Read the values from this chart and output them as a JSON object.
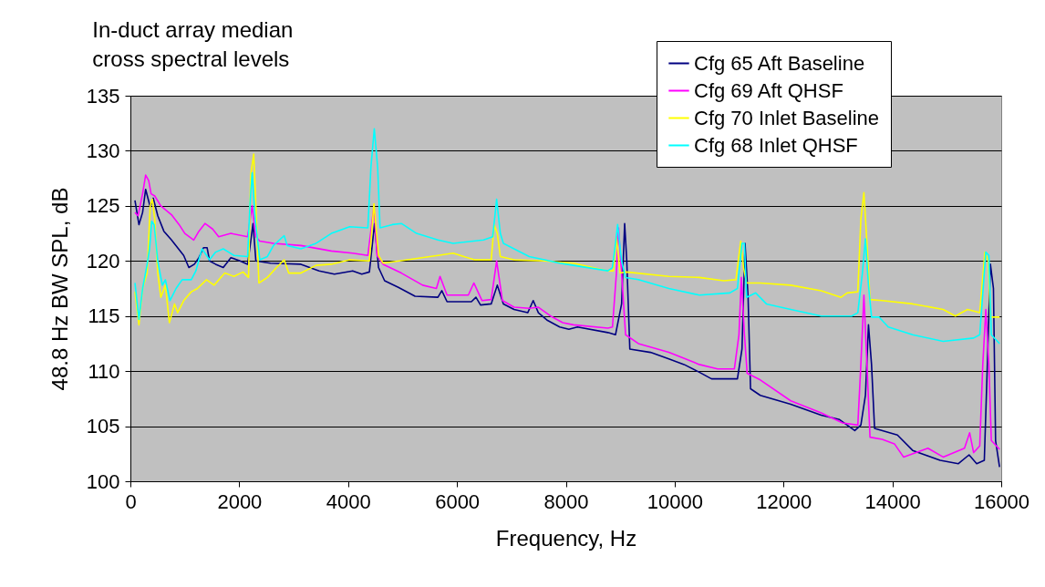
{
  "chart_data": {
    "type": "line",
    "title": "In-duct array median cross spectral levels",
    "xlabel": "Frequency, Hz",
    "ylabel": "48.8 Hz BW SPL, dB",
    "xlim": [
      0,
      16000
    ],
    "xticks": [
      0,
      2000,
      4000,
      6000,
      8000,
      10000,
      12000,
      14000,
      16000
    ],
    "ylim": [
      100,
      135
    ],
    "yticks": [
      100,
      105,
      110,
      115,
      120,
      125,
      130,
      135
    ],
    "grid": "y",
    "legend": "top right",
    "line_style": "solid",
    "marker": "none",
    "series": [
      {
        "name": "Cfg 65 Aft Baseline",
        "color": "#000080",
        "x": [
          84,
          157,
          224,
          280,
          364,
          420,
          503,
          615,
          755,
          979,
          1074,
          1175,
          1259,
          1343,
          1410,
          1454,
          1566,
          1706,
          1846,
          2014,
          2154,
          2254,
          2305,
          2573,
          3133,
          3468,
          3748,
          4084,
          4251,
          4391,
          4486,
          4559,
          4671,
          4923,
          5230,
          5650,
          5722,
          5818,
          6265,
          6349,
          6433,
          6629,
          6741,
          6853,
          7049,
          7300,
          7401,
          7496,
          7664,
          7888,
          8056,
          8213,
          8773,
          8913,
          9025,
          9081,
          9120,
          9176,
          9557,
          9893,
          10173,
          10453,
          10677,
          11153,
          11237,
          11293,
          11349,
          11394,
          11573,
          12133,
          12693,
          13029,
          13309,
          13421,
          13505,
          13561,
          13617,
          13673,
          14093,
          14373,
          14877,
          15213,
          15409,
          15549,
          15689,
          15745,
          15801,
          15857,
          15896,
          15969
        ],
        "values": [
          125.5,
          123.3,
          124.4,
          126.5,
          124.9,
          125.7,
          124.1,
          122.7,
          121.9,
          120.5,
          119.4,
          119.7,
          120.3,
          121.2,
          121.2,
          120,
          119.7,
          119.4,
          120.3,
          120,
          119.7,
          123.4,
          120,
          119.8,
          119.7,
          119.1,
          118.8,
          119.1,
          118.8,
          119,
          123.4,
          119.4,
          118.2,
          117.6,
          116.8,
          116.7,
          117.3,
          116.3,
          116.3,
          116.7,
          116,
          116.1,
          117.8,
          116.1,
          115.6,
          115.3,
          116.4,
          115.3,
          114.6,
          114,
          113.8,
          114,
          113.5,
          113.3,
          116.1,
          123.4,
          120,
          112,
          111.7,
          111.1,
          110.6,
          109.9,
          109.3,
          109.3,
          112,
          121.6,
          116.7,
          108.4,
          107.8,
          107,
          106,
          105.6,
          104.6,
          105.1,
          107.8,
          114.2,
          110.6,
          104.8,
          104.2,
          102.8,
          101.9,
          101.6,
          102.4,
          101.6,
          101.9,
          110.6,
          119.7,
          117.5,
          103.7,
          101.3
        ]
      },
      {
        "name": "Cfg 69 Aft QHSF",
        "color": "#ff00ff",
        "x": [
          84,
          140,
          224,
          280,
          336,
          380,
          447,
          559,
          755,
          895,
          1000,
          1164,
          1259,
          1370,
          1510,
          1622,
          1846,
          2154,
          2237,
          2305,
          2378,
          2629,
          3133,
          3692,
          4084,
          4363,
          4475,
          4531,
          4643,
          4979,
          5370,
          5622,
          5689,
          5818,
          6209,
          6310,
          6461,
          6629,
          6729,
          6836,
          7049,
          7328,
          7496,
          7720,
          7944,
          8140,
          8773,
          8857,
          8930,
          8969,
          9025,
          9098,
          9333,
          9893,
          10453,
          10789,
          11097,
          11181,
          11226,
          11282,
          11332,
          11573,
          12133,
          12693,
          13085,
          13365,
          13421,
          13477,
          13533,
          13589,
          13813,
          14037,
          14205,
          14653,
          14933,
          15325,
          15420,
          15493,
          15605,
          15661,
          15717,
          15773,
          15818,
          15969
        ],
        "values": [
          124.4,
          124.1,
          126.1,
          127.8,
          127.3,
          126.1,
          125.9,
          125,
          124.2,
          123.3,
          122.5,
          121.9,
          122.7,
          123.4,
          122.9,
          122.2,
          122.5,
          122.2,
          125,
          122.2,
          121.8,
          121.6,
          121.4,
          120.9,
          120.7,
          120.5,
          125,
          120.5,
          119.7,
          118.9,
          117.8,
          117.5,
          118.6,
          116.9,
          116.9,
          118,
          116.4,
          116.5,
          120,
          116.4,
          115.8,
          115.7,
          115.8,
          115,
          114.4,
          114.2,
          113.9,
          114,
          118.9,
          123,
          118.9,
          113.3,
          112.5,
          111.7,
          110.6,
          110.2,
          110.2,
          113.3,
          118.5,
          113.3,
          109.8,
          109.2,
          107.3,
          106.2,
          105.3,
          105.1,
          110.6,
          116.9,
          110.6,
          104,
          103.8,
          103.4,
          102.2,
          103,
          102.2,
          103,
          104.4,
          102.6,
          103.2,
          110.6,
          115.6,
          110.6,
          103.7,
          102.9
        ]
      },
      {
        "name": "Cfg 70 Inlet Baseline",
        "color": "#ffff00",
        "x": [
          84,
          157,
          224,
          308,
          364,
          403,
          447,
          503,
          559,
          643,
          716,
          811,
          867,
          979,
          1119,
          1231,
          1398,
          1538,
          1734,
          1902,
          2070,
          2170,
          2210,
          2266,
          2322,
          2361,
          2517,
          2685,
          2825,
          2909,
          3133,
          3412,
          3692,
          4028,
          4391,
          4475,
          4559,
          4643,
          5091,
          5650,
          5930,
          6321,
          6629,
          6685,
          6741,
          6797,
          7049,
          7608,
          8140,
          8773,
          8874,
          8930,
          8997,
          9109,
          9893,
          10453,
          10901,
          11125,
          11214,
          11265,
          11321,
          11573,
          12133,
          12693,
          13057,
          13169,
          13365,
          13421,
          13477,
          13533,
          13589,
          13813,
          14373,
          14933,
          15157,
          15381,
          15605,
          15700,
          15762,
          15801,
          15969
        ],
        "values": [
          117.2,
          114.2,
          117.5,
          118.9,
          125,
          125.6,
          123.8,
          118.9,
          116.7,
          117.8,
          114.4,
          116.1,
          115.3,
          116.4,
          117.2,
          117.5,
          118.3,
          117.8,
          118.9,
          118.6,
          119,
          118.5,
          127.8,
          129.7,
          123,
          118,
          118.5,
          119.4,
          120.1,
          118.9,
          118.9,
          119.6,
          119.7,
          120.1,
          120,
          125.2,
          120.5,
          119.8,
          120.1,
          120.5,
          120.7,
          120.1,
          120.1,
          123.3,
          122.5,
          120.4,
          120.1,
          120,
          119.8,
          119.1,
          119.1,
          122.2,
          118.9,
          119,
          118.6,
          118.5,
          118.2,
          118.3,
          121.8,
          119.4,
          118,
          118,
          117.8,
          117.3,
          116.7,
          117.1,
          117.2,
          123.8,
          126.2,
          121.6,
          116.5,
          116.4,
          116.1,
          115.6,
          115,
          115.6,
          115.3,
          120.8,
          120,
          114.9,
          114.9
        ]
      },
      {
        "name": "Cfg 68 Inlet QHSF",
        "color": "#00ffff",
        "x": [
          84,
          157,
          224,
          308,
          352,
          391,
          436,
          503,
          587,
          643,
          727,
          839,
          951,
          1119,
          1203,
          1315,
          1454,
          1566,
          1706,
          1902,
          2154,
          2198,
          2237,
          2293,
          2378,
          2517,
          2629,
          2825,
          2881,
          3133,
          3412,
          3692,
          4028,
          4363,
          4419,
          4481,
          4543,
          4587,
          4811,
          4979,
          5258,
          5650,
          5930,
          6489,
          6657,
          6729,
          6797,
          6853,
          7049,
          7328,
          7608,
          7888,
          8140,
          8773,
          8857,
          8913,
          8952,
          9025,
          9098,
          9333,
          9893,
          10453,
          11013,
          11153,
          11237,
          11282,
          11321,
          11489,
          11685,
          12133,
          12693,
          13253,
          13365,
          13449,
          13505,
          13561,
          13617,
          13757,
          13925,
          14373,
          14933,
          15493,
          15605,
          15717,
          15773,
          15818,
          15969
        ],
        "values": [
          118,
          114.7,
          117.5,
          119.7,
          121.1,
          123.6,
          123.3,
          120,
          117.8,
          118.3,
          116.4,
          117.5,
          118.3,
          118.3,
          119.1,
          121.1,
          120.1,
          120.8,
          121.1,
          120.5,
          120.4,
          125.2,
          128,
          123.8,
          120.1,
          120.4,
          121.4,
          122.3,
          121.4,
          121.1,
          121.6,
          122.5,
          123.1,
          123,
          128.5,
          132,
          128.5,
          123,
          123.3,
          123.4,
          122.5,
          121.9,
          121.6,
          121.9,
          122.2,
          125.6,
          122.5,
          121.6,
          121.1,
          120.4,
          120.1,
          119.8,
          119.6,
          119.1,
          119.4,
          121.6,
          123.3,
          120,
          118.5,
          118.3,
          117.5,
          116.9,
          117.1,
          117.5,
          121.6,
          121.6,
          116.7,
          117.1,
          116.1,
          115.6,
          115,
          115,
          115.3,
          118.9,
          122,
          117.8,
          114.9,
          114.9,
          114,
          113.3,
          112.7,
          113,
          113.3,
          120.8,
          120.5,
          113.3,
          112.5
        ]
      }
    ]
  }
}
